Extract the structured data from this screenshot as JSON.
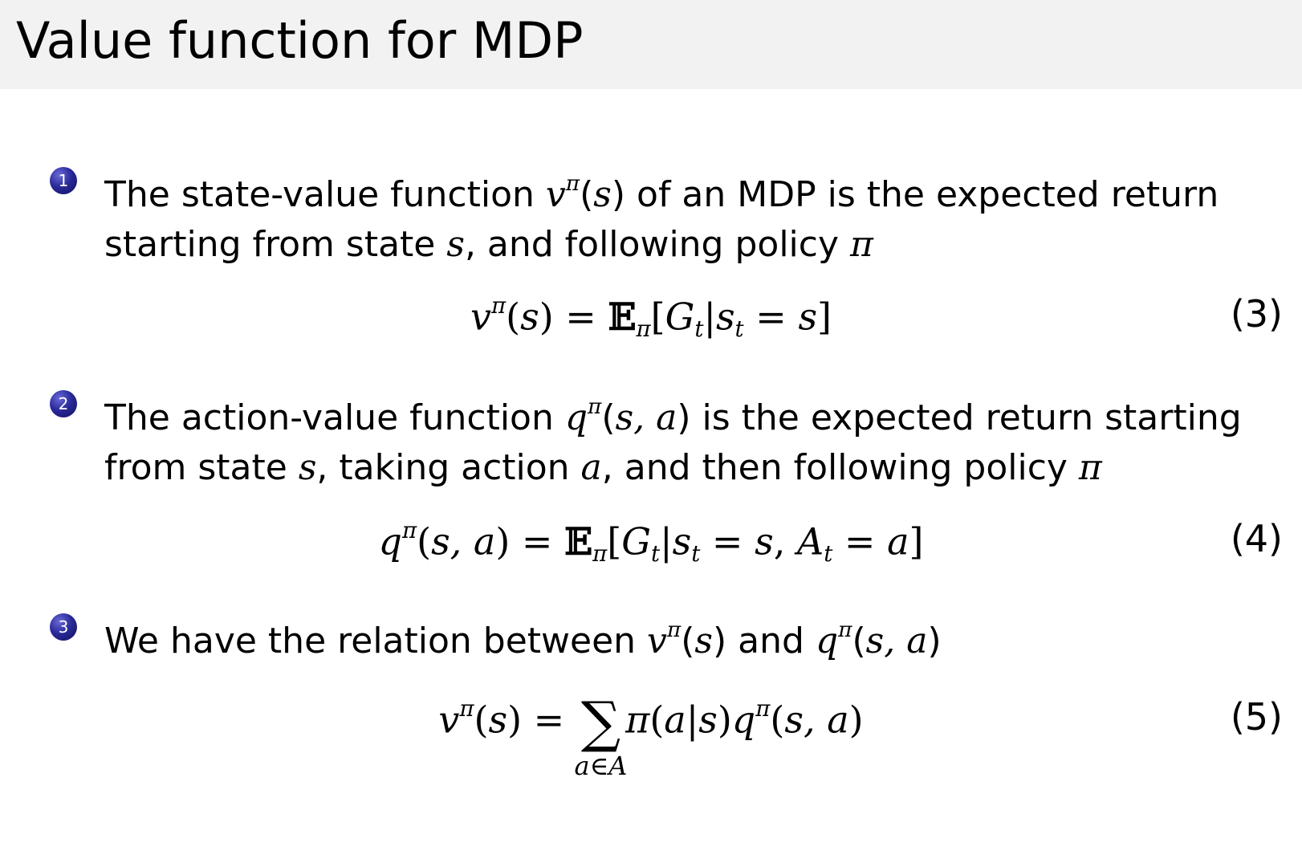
{
  "slide": {
    "title": "Value function for MDP",
    "bullet_color": "#2a2a9a",
    "items": [
      {
        "number": "1",
        "lines": [
          [
            {
              "t": "The state-value function "
            },
            {
              "t": "v",
              "m": 1
            },
            {
              "t": "π",
              "m": 2
            },
            {
              "t": "(",
              "m": 0
            },
            {
              "t": "s",
              "m": 1
            },
            {
              "t": ")"
            },
            {
              "t": " of an MDP is the expected return"
            }
          ],
          [
            {
              "t": "starting from state "
            },
            {
              "t": "s",
              "m": 1
            },
            {
              "t": ", and following policy "
            },
            {
              "t": "π",
              "m": 1
            }
          ]
        ],
        "equation": {
          "number": "(3)",
          "tokens": [
            {
              "t": "v",
              "c": "it"
            },
            {
              "t": "π",
              "c": "sup"
            },
            {
              "t": "("
            },
            {
              "t": "s",
              "c": "it"
            },
            {
              "t": ") = "
            },
            {
              "t": "𝔼",
              "c": "bb"
            },
            {
              "t": "π",
              "c": "sub"
            },
            {
              "t": "["
            },
            {
              "t": "G",
              "c": "it"
            },
            {
              "t": "t",
              "c": "sub"
            },
            {
              "t": "|"
            },
            {
              "t": "s",
              "c": "it"
            },
            {
              "t": "t",
              "c": "sub"
            },
            {
              "t": " = "
            },
            {
              "t": "s",
              "c": "it"
            },
            {
              "t": "]"
            }
          ]
        }
      },
      {
        "number": "2",
        "lines": [
          [
            {
              "t": "The action-value function "
            },
            {
              "t": "q",
              "m": 1
            },
            {
              "t": "π",
              "m": 2
            },
            {
              "t": "("
            },
            {
              "t": "s, a",
              "m": 1
            },
            {
              "t": ")"
            },
            {
              "t": " is the expected return starting"
            }
          ],
          [
            {
              "t": "from state "
            },
            {
              "t": "s",
              "m": 1
            },
            {
              "t": ", taking action "
            },
            {
              "t": "a",
              "m": 1
            },
            {
              "t": ", and then following policy "
            },
            {
              "t": "π",
              "m": 1
            }
          ]
        ],
        "equation": {
          "number": "(4)",
          "tokens": [
            {
              "t": "q",
              "c": "it"
            },
            {
              "t": "π",
              "c": "sup"
            },
            {
              "t": "("
            },
            {
              "t": "s, a",
              "c": "it"
            },
            {
              "t": ") = "
            },
            {
              "t": "𝔼",
              "c": "bb"
            },
            {
              "t": "π",
              "c": "sub"
            },
            {
              "t": "["
            },
            {
              "t": "G",
              "c": "it"
            },
            {
              "t": "t",
              "c": "sub"
            },
            {
              "t": "|"
            },
            {
              "t": "s",
              "c": "it"
            },
            {
              "t": "t",
              "c": "sub"
            },
            {
              "t": " = "
            },
            {
              "t": "s",
              "c": "it"
            },
            {
              "t": ", "
            },
            {
              "t": "A",
              "c": "it"
            },
            {
              "t": "t",
              "c": "sub"
            },
            {
              "t": " = "
            },
            {
              "t": "a",
              "c": "it"
            },
            {
              "t": "]"
            }
          ]
        }
      },
      {
        "number": "3",
        "lines": [
          [
            {
              "t": "We have the relation between "
            },
            {
              "t": "v",
              "m": 1
            },
            {
              "t": "π",
              "m": 2
            },
            {
              "t": "("
            },
            {
              "t": "s",
              "m": 1
            },
            {
              "t": ")"
            },
            {
              "t": " and "
            },
            {
              "t": "q",
              "m": 1
            },
            {
              "t": "π",
              "m": 2
            },
            {
              "t": "("
            },
            {
              "t": "s, a",
              "m": 1
            },
            {
              "t": ")"
            }
          ]
        ],
        "equation": {
          "number": "(5)",
          "tokens": [
            {
              "t": "v",
              "c": "it"
            },
            {
              "t": "π",
              "c": "sup"
            },
            {
              "t": "("
            },
            {
              "t": "s",
              "c": "it"
            },
            {
              "t": ") = "
            },
            {
              "t": "∑",
              "c": "sum",
              "under": "a∈A"
            },
            {
              "t": "π",
              "c": "it"
            },
            {
              "t": "("
            },
            {
              "t": "a",
              "c": "it"
            },
            {
              "t": "|"
            },
            {
              "t": "s",
              "c": "it"
            },
            {
              "t": ")"
            },
            {
              "t": "q",
              "c": "it"
            },
            {
              "t": "π",
              "c": "sup"
            },
            {
              "t": "("
            },
            {
              "t": "s, a",
              "c": "it"
            },
            {
              "t": ")"
            }
          ]
        }
      }
    ]
  }
}
